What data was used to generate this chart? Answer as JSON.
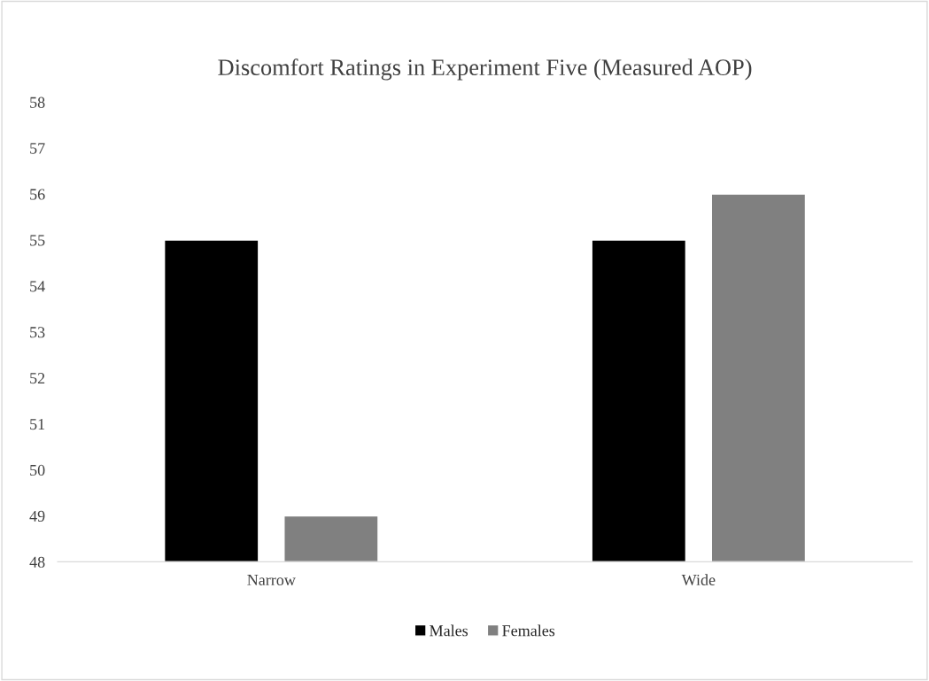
{
  "chart_data": {
    "type": "bar",
    "title": "Discomfort Ratings in Experiment Five (Measured AOP)",
    "categories": [
      "Narrow",
      "Wide"
    ],
    "series": [
      {
        "name": "Males",
        "color": "#000000",
        "values": [
          55,
          55
        ]
      },
      {
        "name": "Females",
        "color": "#808080",
        "values": [
          49,
          56
        ]
      }
    ],
    "ylim": [
      48,
      58
    ],
    "yticks": [
      48,
      49,
      50,
      51,
      52,
      53,
      54,
      55,
      56,
      57,
      58
    ],
    "grid": false,
    "legend": "bottom"
  }
}
